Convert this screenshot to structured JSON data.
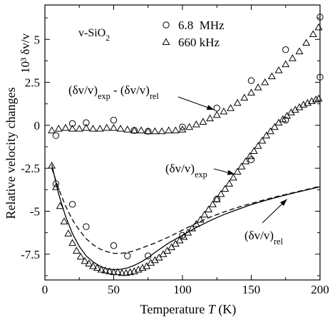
{
  "chart_data": {
    "type": "scatter",
    "title": "",
    "xlabel": "Temperature",
    "xlabel_symbol": "T",
    "xlabel_unit": "(K)",
    "ylabel": "Relative velocity changes",
    "ylabel_right": "10³ δv/v",
    "xlim": [
      0,
      200
    ],
    "ylim": [
      -9.0,
      7.0
    ],
    "xticks": [
      0,
      50,
      100,
      150,
      200
    ],
    "xtick_labels": [
      "0",
      "50",
      "100",
      "150",
      "200"
    ],
    "yticks": [
      5,
      2.5,
      0,
      -2.5,
      -5,
      -7.5
    ],
    "ytick_labels": [
      "5",
      "2.5",
      "0",
      "-2.5",
      "-5",
      "-7.5"
    ],
    "grid": false,
    "sample_label": {
      "base": "v-SiO",
      "sub": "2"
    },
    "legend": {
      "placement": "top",
      "entries": [
        {
          "marker": "circle",
          "label": "6.8  MHz"
        },
        {
          "marker": "triangle",
          "label": "660 kHz"
        }
      ]
    },
    "annotations": [
      {
        "id": "diff",
        "parts": [
          [
            "(δv/v)",
            ""
          ],
          [
            "exp",
            "sub"
          ],
          [
            " - (δv/v)",
            ""
          ],
          [
            "rel",
            "sub"
          ]
        ],
        "arrow_to": {
          "x": 123,
          "y": 0.9
        }
      },
      {
        "id": "exp",
        "parts": [
          [
            "(δv/v)",
            ""
          ],
          [
            "exp",
            "sub"
          ]
        ],
        "arrow_to": {
          "x": 138,
          "y": -2.85
        }
      },
      {
        "id": "rel",
        "parts": [
          [
            "(δv/v)",
            ""
          ],
          [
            "rel",
            "sub"
          ]
        ],
        "arrow_to": {
          "x": 176,
          "y": -4.3
        }
      }
    ],
    "series": [
      {
        "marker": "circle",
        "x": [
          8,
          20,
          30,
          50,
          60,
          75,
          100,
          125,
          150,
          175,
          200
        ],
        "y": [
          -3.4,
          -4.6,
          -5.9,
          -7.0,
          -7.6,
          -7.6,
          -6.4,
          -4.3,
          -2.0,
          0.3,
          2.8
        ]
      },
      {
        "marker": "triangle",
        "x": [
          5,
          8,
          11,
          14,
          17,
          20,
          23,
          26,
          29,
          32,
          35,
          38,
          41,
          44,
          47,
          50,
          53,
          56,
          59,
          62,
          65,
          68,
          71,
          74,
          77,
          80,
          83,
          86,
          89,
          92,
          95,
          98,
          101,
          104,
          107,
          110,
          113,
          116,
          119,
          122,
          125,
          128,
          131,
          134,
          137,
          140,
          143,
          146,
          149,
          152,
          155,
          158,
          161,
          164,
          167,
          170,
          173,
          176,
          179,
          182,
          185,
          188,
          191,
          194,
          197,
          199
        ],
        "y": [
          -2.35,
          -3.6,
          -4.7,
          -5.6,
          -6.3,
          -6.85,
          -7.3,
          -7.65,
          -7.9,
          -8.05,
          -8.2,
          -8.3,
          -8.4,
          -8.45,
          -8.5,
          -8.55,
          -8.55,
          -8.6,
          -8.6,
          -8.55,
          -8.5,
          -8.4,
          -8.3,
          -8.2,
          -8.0,
          -7.85,
          -7.7,
          -7.5,
          -7.3,
          -7.1,
          -6.9,
          -6.7,
          -6.5,
          -6.25,
          -6.0,
          -5.75,
          -5.5,
          -5.2,
          -4.9,
          -4.6,
          -4.3,
          -4.0,
          -3.7,
          -3.4,
          -3.05,
          -2.7,
          -2.4,
          -2.1,
          -1.8,
          -1.5,
          -1.2,
          -0.9,
          -0.6,
          -0.35,
          -0.1,
          0.15,
          0.35,
          0.55,
          0.75,
          0.9,
          1.05,
          1.2,
          1.3,
          1.4,
          1.5,
          1.55
        ]
      },
      {
        "marker": "circle",
        "x": [
          8,
          20,
          30,
          50,
          65,
          75,
          100,
          125,
          150,
          175,
          200
        ],
        "y": [
          -0.6,
          0.1,
          0.15,
          0.3,
          -0.3,
          -0.35,
          -0.1,
          1.0,
          2.6,
          4.4,
          6.3
        ]
      },
      {
        "marker": "triangle",
        "x": [
          5,
          10,
          15,
          20,
          25,
          30,
          35,
          40,
          45,
          50,
          55,
          60,
          65,
          70,
          75,
          80,
          85,
          90,
          95,
          100,
          105,
          110,
          115,
          120,
          125,
          130,
          135,
          140,
          145,
          150,
          155,
          160,
          165,
          170,
          175,
          180,
          185,
          190,
          195,
          199
        ],
        "y": [
          -0.3,
          -0.2,
          -0.15,
          -0.2,
          -0.2,
          -0.15,
          -0.2,
          -0.2,
          -0.15,
          -0.15,
          -0.2,
          -0.25,
          -0.3,
          -0.3,
          -0.35,
          -0.35,
          -0.35,
          -0.3,
          -0.3,
          -0.25,
          -0.1,
          0.05,
          0.2,
          0.4,
          0.6,
          0.8,
          1.0,
          1.3,
          1.6,
          1.9,
          2.2,
          2.5,
          2.85,
          3.2,
          3.55,
          3.9,
          4.3,
          4.8,
          5.3,
          5.7
        ]
      },
      {
        "line": "solid",
        "x": [
          5,
          10,
          15,
          20,
          25,
          30,
          35,
          40,
          45,
          50,
          55,
          60,
          65,
          70,
          75,
          80,
          90,
          100,
          110,
          120,
          130,
          140,
          150,
          160,
          170,
          180,
          190,
          200
        ],
        "y": [
          -2.3,
          -4.0,
          -5.3,
          -6.3,
          -7.05,
          -7.6,
          -7.95,
          -8.2,
          -8.35,
          -8.4,
          -8.38,
          -8.3,
          -8.15,
          -7.95,
          -7.7,
          -7.4,
          -6.85,
          -6.4,
          -5.95,
          -5.55,
          -5.2,
          -4.9,
          -4.62,
          -4.38,
          -4.16,
          -3.96,
          -3.77,
          -3.58
        ]
      },
      {
        "line": "dashed",
        "x": [
          5,
          10,
          15,
          20,
          25,
          30,
          35,
          40,
          45,
          50,
          55,
          60,
          65,
          70,
          75,
          80,
          90,
          100,
          110,
          120,
          130,
          140,
          150,
          160,
          170,
          180,
          190,
          200
        ],
        "y": [
          -2.5,
          -3.7,
          -4.7,
          -5.5,
          -6.1,
          -6.6,
          -6.95,
          -7.2,
          -7.35,
          -7.45,
          -7.45,
          -7.4,
          -7.3,
          -7.15,
          -7.0,
          -6.85,
          -6.5,
          -6.1,
          -5.7,
          -5.35,
          -5.05,
          -4.78,
          -4.55,
          -4.33,
          -4.12,
          -3.93,
          -3.74,
          -3.55
        ]
      }
    ]
  }
}
